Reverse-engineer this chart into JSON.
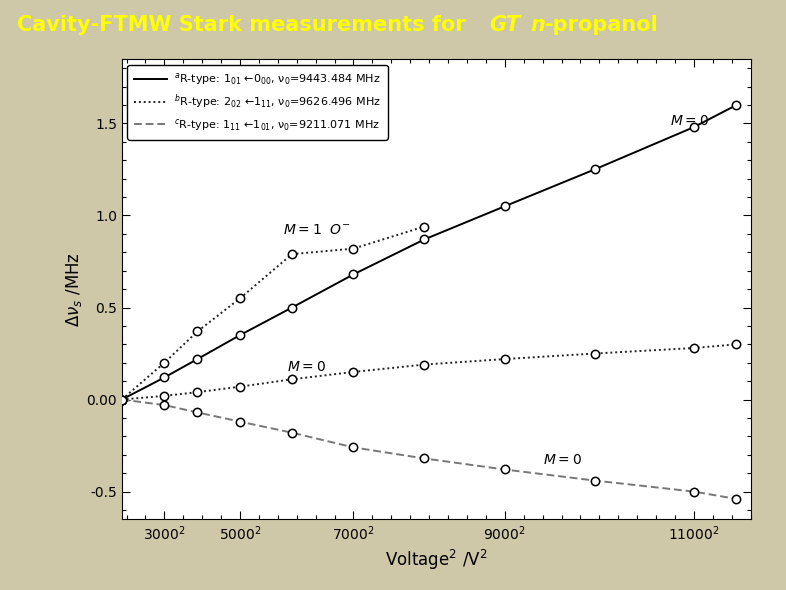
{
  "header_bg": "#1e3f6e",
  "header_text_color": "#ffff00",
  "bg_color": "#cec8a8",
  "plot_bg": "#ffffff",
  "xlabel": "Voltage$^2$ /V$^2$",
  "ylabel": "$\\Delta\\nu_s$ /MHz",
  "xticks_vals": [
    9000000,
    25000000,
    49000000,
    81000000,
    121000000
  ],
  "xticks_labels": [
    "3000$^2$",
    "5000$^2$",
    "7000$^2$",
    "9000$^2$",
    "11000$^2$"
  ],
  "yticks_vals": [
    -0.5,
    0.0,
    0.5,
    1.0,
    1.5
  ],
  "yticks_labels": [
    "-0.5",
    "0.00",
    "0.5",
    "1.0",
    "1.5"
  ],
  "legend_a": "$^a$R-type: 1$_{01}$ ←0$_{00}$, ν$_0$=9443.484 MHz",
  "legend_b": "$^b$R-type: 2$_{02}$ ←1$_{11}$, ν$_0$=9626.496 MHz",
  "legend_c": "$^c$R-type: 1$_{11}$ ←1$_{01}$, ν$_0$=9211.071 MHz",
  "line_a_x": [
    0,
    9000000,
    16000000,
    25000000,
    36000000,
    49000000,
    64000000,
    81000000,
    100000000,
    121000000,
    130000000
  ],
  "line_a_y": [
    0.0,
    0.12,
    0.22,
    0.35,
    0.5,
    0.68,
    0.87,
    1.05,
    1.25,
    1.48,
    1.6
  ],
  "line_b_M1_x": [
    0,
    9000000,
    16000000,
    25000000,
    36000000,
    49000000,
    64000000
  ],
  "line_b_M1_y": [
    0.0,
    0.2,
    0.37,
    0.55,
    0.79,
    0.82,
    0.94
  ],
  "line_b_M0_x": [
    0,
    9000000,
    16000000,
    25000000,
    36000000,
    49000000,
    64000000,
    81000000,
    100000000,
    121000000,
    130000000
  ],
  "line_b_M0_y": [
    0.0,
    0.02,
    0.04,
    0.07,
    0.11,
    0.15,
    0.19,
    0.22,
    0.25,
    0.28,
    0.3
  ],
  "line_c_x": [
    0,
    9000000,
    16000000,
    25000000,
    36000000,
    49000000,
    64000000,
    81000000,
    100000000,
    121000000,
    130000000
  ],
  "line_c_y": [
    0.0,
    -0.03,
    -0.07,
    -0.12,
    -0.18,
    -0.26,
    -0.32,
    -0.38,
    -0.44,
    -0.5,
    -0.54
  ]
}
